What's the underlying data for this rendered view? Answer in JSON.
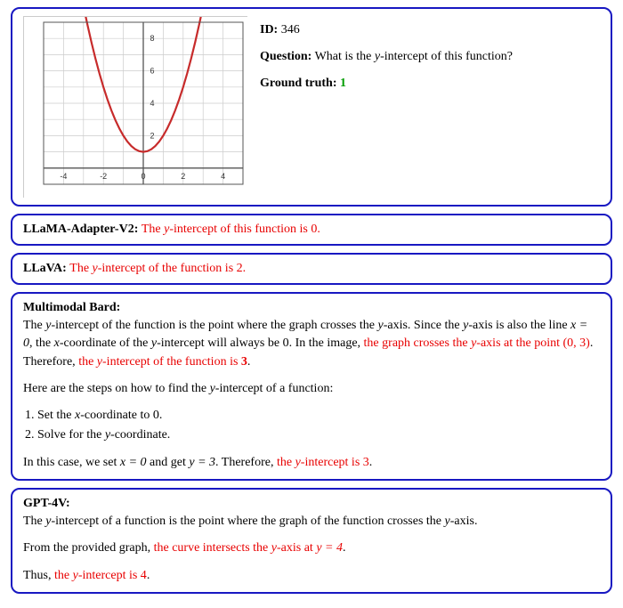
{
  "header": {
    "id_label": "ID:",
    "id_value": "346",
    "question_label": "Question:",
    "question_text_pre": "What is the ",
    "question_var": "y",
    "question_text_post": "-intercept of this function?",
    "truth_label": "Ground truth:",
    "truth_value": "1"
  },
  "chart": {
    "type": "line",
    "curve_color": "#c72b2b",
    "curve_width": 2.2,
    "grid_color": "#cccccc",
    "axis_color": "#555555",
    "bg_color": "#ffffff",
    "xlim": [
      -5,
      5
    ],
    "ylim": [
      -1,
      9
    ],
    "xtick_step": 1,
    "ytick_step": 1,
    "xtick_labels": [
      -4,
      -2,
      0,
      2,
      4
    ],
    "ytick_labels": [
      2,
      4,
      6,
      8
    ],
    "tick_fontsize": 9,
    "points": [
      [
        -3.0,
        10.0
      ],
      [
        -2.8,
        8.84
      ],
      [
        -2.6,
        7.76
      ],
      [
        -2.4,
        6.76
      ],
      [
        -2.2,
        5.84
      ],
      [
        -2.0,
        5.0
      ],
      [
        -1.8,
        4.24
      ],
      [
        -1.6,
        3.56
      ],
      [
        -1.4,
        2.96
      ],
      [
        -1.2,
        2.44
      ],
      [
        -1.0,
        2.0
      ],
      [
        -0.8,
        1.64
      ],
      [
        -0.6,
        1.36
      ],
      [
        -0.4,
        1.16
      ],
      [
        -0.2,
        1.04
      ],
      [
        0.0,
        1.0
      ],
      [
        0.2,
        1.04
      ],
      [
        0.4,
        1.16
      ],
      [
        0.6,
        1.36
      ],
      [
        0.8,
        1.64
      ],
      [
        1.0,
        2.0
      ],
      [
        1.2,
        2.44
      ],
      [
        1.4,
        2.96
      ],
      [
        1.6,
        3.56
      ],
      [
        1.8,
        4.24
      ],
      [
        2.0,
        5.0
      ],
      [
        2.2,
        5.84
      ],
      [
        2.4,
        6.76
      ],
      [
        2.6,
        7.76
      ],
      [
        2.8,
        8.84
      ],
      [
        3.0,
        10.0
      ]
    ]
  },
  "resp1": {
    "model": "LLaMA-Adapter-V2: ",
    "t1": "The ",
    "var": "y",
    "t2": "-intercept of this function is 0."
  },
  "resp2": {
    "model": "LLaVA: ",
    "t1": "The ",
    "var": "y",
    "t2": "-intercept of the function is 2."
  },
  "resp3": {
    "model": "Multimodal Bard:",
    "p1_a": "The ",
    "p1_var1": "y",
    "p1_b": "-intercept of the function is the point where the graph crosses the ",
    "p1_var2": "y",
    "p1_c": "-axis. Since the ",
    "p1_var3": "y",
    "p1_d": "-axis is also the line ",
    "p1_eq1": "x = 0",
    "p1_e": ", the ",
    "p1_var4": "x",
    "p1_f": "-coordinate of the ",
    "p1_var5": "y",
    "p1_g": "-intercept will always be 0. In the image, ",
    "p1_red_a": "the graph crosses the ",
    "p1_red_var": "y",
    "p1_red_b": "-axis at the point (0, 3)",
    "p1_h": ". Therefore, ",
    "p1_red2_a": "the ",
    "p1_red2_var": "y",
    "p1_red2_b": "-intercept of the function is ",
    "p1_red2_c": "3",
    "p1_i": ".",
    "p2_a": "Here are the steps on how to find the ",
    "p2_var": "y",
    "p2_b": "-intercept of a function:",
    "step1_a": "1. Set the ",
    "step1_var": "x",
    "step1_b": "-coordinate to 0.",
    "step2_a": "2. Solve for the ",
    "step2_var": "y",
    "step2_b": "-coordinate.",
    "p3_a": "In this case, we set ",
    "p3_eq1": "x = 0",
    "p3_b": " and get ",
    "p3_eq2": "y = 3",
    "p3_c": ". Therefore, ",
    "p3_red_a": "the ",
    "p3_red_var": "y",
    "p3_red_b": "-intercept is 3",
    "p3_d": "."
  },
  "resp4": {
    "model": "GPT-4V:",
    "p1_a": "The ",
    "p1_var1": "y",
    "p1_b": "-intercept of a function is the point where the graph of the function crosses the ",
    "p1_var2": "y",
    "p1_c": "-axis.",
    "p2_a": "From the provided graph, ",
    "p2_red_a": "the curve intersects the ",
    "p2_red_var": "y",
    "p2_red_b": "-axis at ",
    "p2_red_eq": "y = 4",
    "p2_b": ".",
    "p3_a": "Thus, ",
    "p3_red_a": "the ",
    "p3_red_var": "y",
    "p3_red_b": "-intercept is 4",
    "p3_b": "."
  }
}
